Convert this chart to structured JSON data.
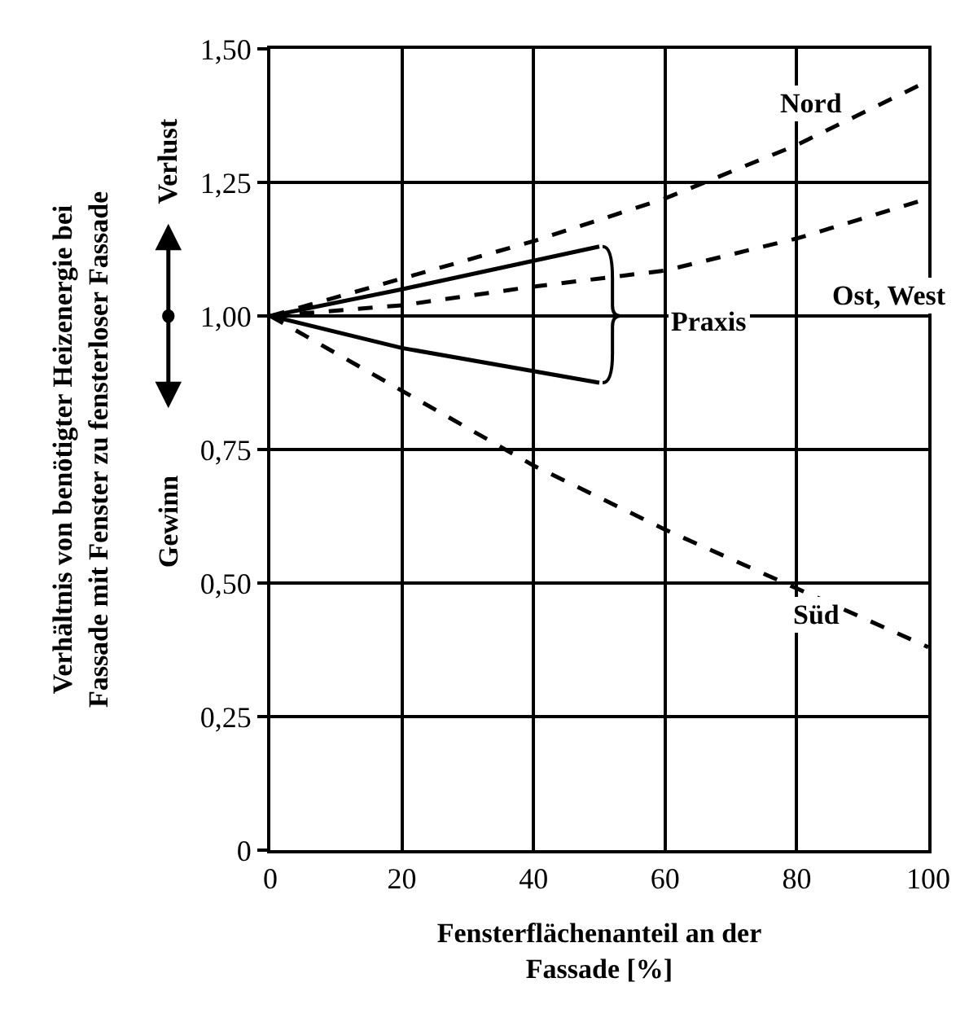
{
  "chart_data": {
    "type": "line",
    "xlabel": "Fensterflächenanteil an der\nFassade [%]",
    "ylabel": "Verhältnis von benötigter Heizenergie bei\nFassade mit Fenster zu fensterloser Fassade",
    "xlim": [
      0,
      100
    ],
    "xticks": [
      0,
      20,
      40,
      60,
      80,
      100
    ],
    "ylim": [
      0,
      1.5
    ],
    "yticks": [
      0,
      {
        "value": 0.25,
        "label": "0,25"
      },
      {
        "value": 0.5,
        "label": "0,50"
      },
      {
        "value": 0.75,
        "label": "0,75"
      },
      {
        "value": 1.0,
        "label": "1,00"
      },
      {
        "value": 1.25,
        "label": "1,25"
      },
      {
        "value": 1.5,
        "label": "1,50"
      }
    ],
    "grid": true,
    "marker": "none",
    "series": [
      {
        "color": "#000000",
        "line_style": "dashed",
        "x": [
          0,
          20,
          40,
          60,
          80,
          100
        ],
        "values": [
          1.0,
          1.07,
          1.14,
          1.22,
          1.32,
          1.44
        ]
      },
      {
        "color": "#000000",
        "line_style": "dashed",
        "x": [
          0,
          20,
          40,
          60,
          80,
          100
        ],
        "values": [
          1.0,
          1.02,
          1.055,
          1.085,
          1.145,
          1.22
        ]
      },
      {
        "color": "#000000",
        "line_style": "solid",
        "x": [
          0,
          20,
          50
        ],
        "values": [
          1.0,
          1.05,
          1.13
        ]
      },
      {
        "color": "#000000",
        "line_style": "solid",
        "x": [
          0,
          20,
          50
        ],
        "values": [
          1.0,
          0.94,
          0.875
        ]
      },
      {
        "color": "#000000",
        "line_style": "dashed",
        "x": [
          0,
          20,
          40,
          60,
          80,
          100
        ],
        "values": [
          1.0,
          0.86,
          0.72,
          0.6,
          0.49,
          0.38
        ]
      }
    ],
    "annotations": [
      "Nord",
      "Ost, West",
      "Praxis",
      "Süd",
      "Verlust",
      "Gewinn"
    ]
  }
}
